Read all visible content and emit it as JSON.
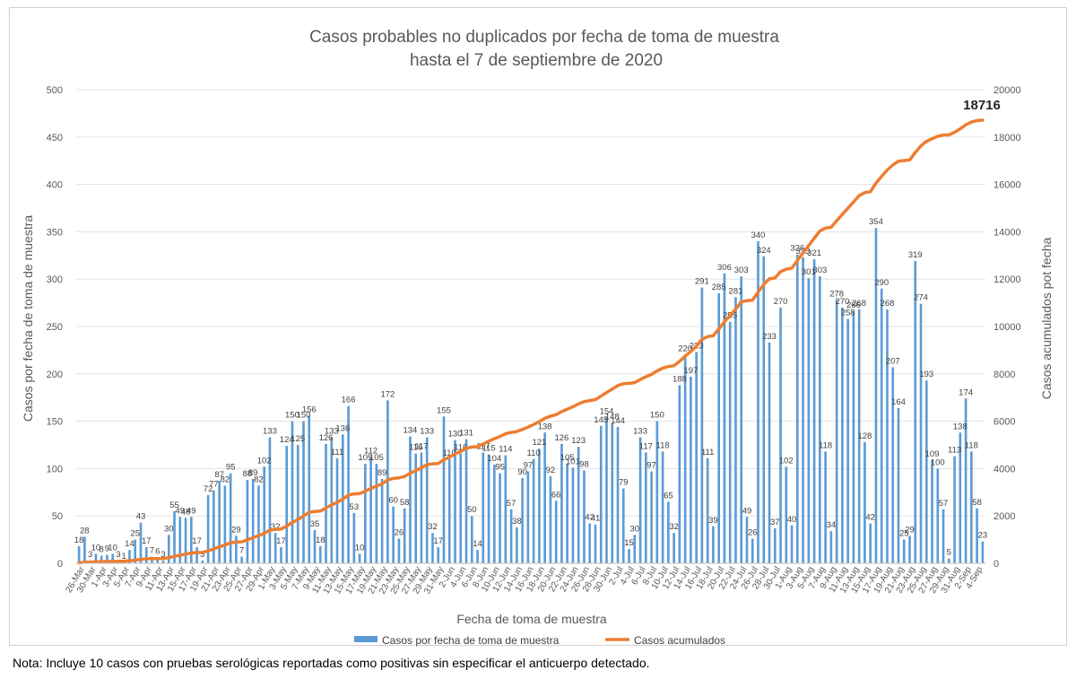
{
  "note": "Nota: Incluye 10 casos con pruebas serológicas reportadas como positivas sin especificar el anticuerpo detectado.",
  "chart_data": {
    "type": "bar+line",
    "title": [
      "Casos probables no duplicados por fecha de toma de muestra",
      "hasta el  7 de septiembre de 2020"
    ],
    "xlabel": "Fecha de toma de muestra",
    "ylabel": "Casos por fecha de toma de muestra",
    "y2label": "Casos acumulados pot fecha",
    "ylim": [
      0,
      500
    ],
    "y2lim": [
      0,
      20000
    ],
    "yticks": [
      0,
      50,
      100,
      150,
      200,
      250,
      300,
      350,
      400,
      450,
      500
    ],
    "y2ticks": [
      0,
      2000,
      4000,
      6000,
      8000,
      10000,
      12000,
      14000,
      16000,
      18000,
      20000
    ],
    "xtick_labels": [
      "26-Mar",
      "30-Mar",
      "1-Apr",
      "3-Apr",
      "5-Apr",
      "7-Apr",
      "9-Apr",
      "11-Apr",
      "13-Apr",
      "15-Apr",
      "17-Apr",
      "19-Apr",
      "21-Apr",
      "23-Apr",
      "25-Apr",
      "27-Apr",
      "29-Apr",
      "1-May",
      "3-May",
      "5-May",
      "7-May",
      "9-May",
      "11-May",
      "13-May",
      "15-May",
      "17-May",
      "19-May",
      "21-May",
      "23-May",
      "25-May",
      "27-May",
      "29-May",
      "31-May",
      "2-Jun",
      "4-Jun",
      "6-Jun",
      "8-Jun",
      "10-Jun",
      "12-Jun",
      "14-Jun",
      "16-Jun",
      "18-Jun",
      "20-Jun",
      "22-Jun",
      "24-Jun",
      "26-Jun",
      "28-Jun",
      "30-Jun",
      "2-Jul",
      "4-Jul",
      "6-Jul",
      "8-Jul",
      "10-Jul",
      "12-Jul",
      "14-Jul",
      "16-Jul",
      "18-Jul",
      "20-Jul",
      "22-Jul",
      "24-Jul",
      "26-Jul",
      "28-Jul",
      "30-Jul",
      "1-Aug",
      "3-Aug",
      "5-Aug",
      "7-Aug",
      "9-Aug",
      "11-Aug",
      "13-Aug",
      "15-Aug",
      "17-Aug",
      "19-Aug",
      "21-Aug",
      "23-Aug",
      "25-Aug",
      "27-Aug",
      "29-Aug",
      "31-Aug",
      "2-Sep",
      "4-Sep"
    ],
    "series": [
      {
        "name": "Casos por fecha de toma de muestra",
        "type": "bar",
        "color": "#5b9bd5",
        "values": [
          18,
          28,
          3,
          10,
          8,
          9,
          10,
          3,
          1,
          14,
          25,
          43,
          17,
          7,
          6,
          3,
          30,
          55,
          49,
          48,
          49,
          17,
          3,
          72,
          77,
          87,
          82,
          95,
          29,
          7,
          88,
          89,
          82,
          102,
          133,
          32,
          17,
          124,
          150,
          125,
          150,
          156,
          35,
          18,
          126,
          133,
          111,
          136,
          166,
          53,
          10,
          105,
          112,
          105,
          89,
          172,
          60,
          26,
          58,
          134,
          116,
          117,
          133,
          32,
          17,
          155,
          110,
          130,
          116,
          131,
          50,
          14,
          117,
          115,
          104,
          95,
          114,
          57,
          38,
          90,
          97,
          110,
          121,
          138,
          92,
          66,
          126,
          105,
          101,
          123,
          98,
          42,
          41,
          145,
          154,
          148,
          144,
          79,
          15,
          30,
          133,
          117,
          97,
          150,
          118,
          65,
          32,
          188,
          220,
          197,
          223,
          291,
          111,
          39,
          285,
          306,
          255,
          281,
          303,
          49,
          26,
          340,
          324,
          233,
          37,
          270,
          102,
          40,
          326,
          323,
          301,
          321,
          303,
          118,
          34,
          278,
          270,
          258,
          266,
          268,
          128,
          42,
          354,
          290,
          268,
          207,
          164,
          25,
          29,
          319,
          274,
          193,
          109,
          100,
          57,
          5,
          113,
          138,
          174,
          118,
          58,
          23
        ]
      },
      {
        "name": "Casos acumulados",
        "type": "line",
        "color": "#ed7d31",
        "final_value": 18716,
        "final_label": "18716"
      }
    ],
    "legend": [
      "Casos por fecha de toma de muestra",
      "Casos acumulados"
    ],
    "legend_position": "bottom"
  }
}
